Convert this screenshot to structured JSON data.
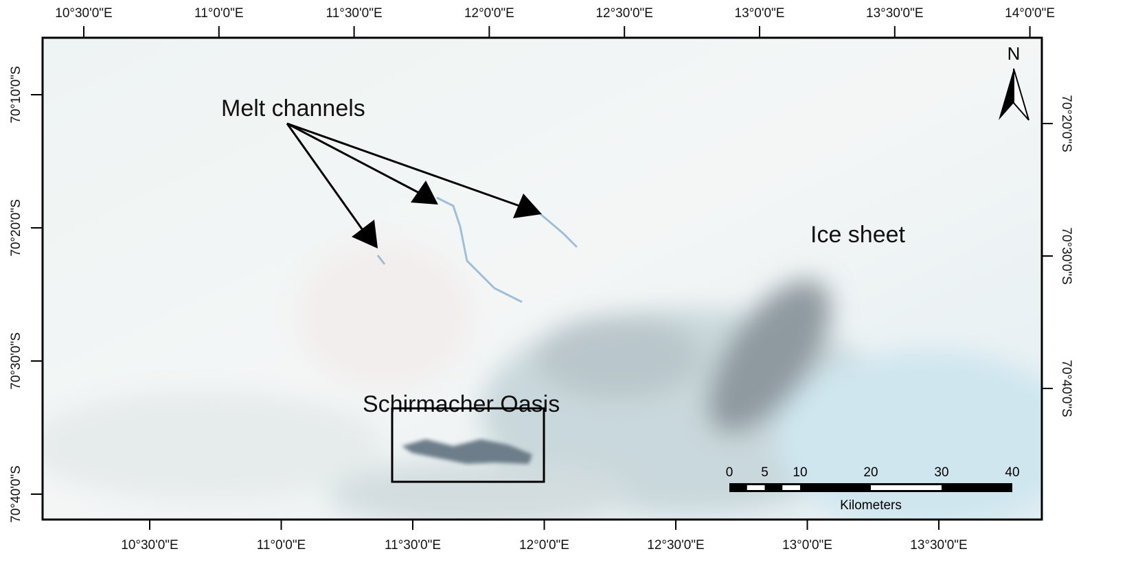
{
  "graticule": {
    "top": [
      "10°30'0\"E",
      "11°0'0\"E",
      "11°30'0\"E",
      "12°0'0\"E",
      "12°30'0\"E",
      "13°0'0\"E",
      "13°30'0\"E",
      "14°0'0\"E"
    ],
    "bottom": [
      "10°30'0\"E",
      "11°0'0\"E",
      "11°30'0\"E",
      "12°0'0\"E",
      "12°30'0\"E",
      "13°0'0\"E",
      "13°30'0\"E"
    ],
    "left": [
      "70°10'0\"S",
      "70°20'0\"S",
      "70°30'0\"S",
      "70°40'0\"S"
    ],
    "right": [
      "70°20'0\"S",
      "70°30'0\"S",
      "70°40'0\"S"
    ]
  },
  "labels": {
    "melt_channels": "Melt channels",
    "ice_sheet": "Ice sheet",
    "oasis": "Schirmacher Oasis"
  },
  "north_arrow": "N",
  "scale_bar": {
    "ticks": [
      0,
      5,
      10,
      20,
      30,
      40
    ],
    "unit": "Kilometers"
  }
}
